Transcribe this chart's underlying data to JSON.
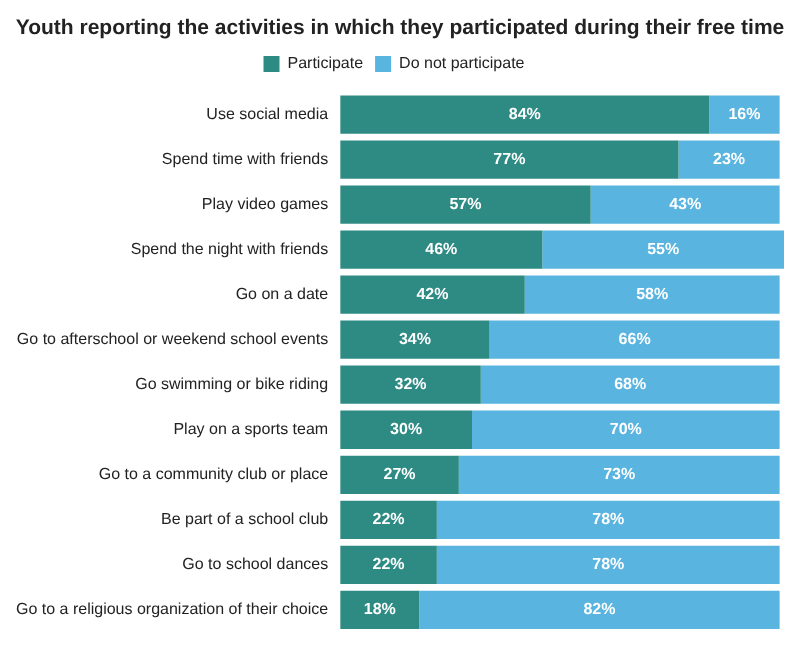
{
  "chart_data": {
    "type": "bar",
    "orientation": "horizontal",
    "stacked": true,
    "title": "Youth reporting the activities in which they participated during their free time",
    "categories": [
      "Use social media",
      "Spend time with friends",
      "Play video games",
      "Spend the night with friends",
      "Go on a date",
      "Go to afterschool or weekend school events",
      "Go swimming or bike riding",
      "Play on a sports team",
      "Go to a community club or place",
      "Be part of a school club",
      "Go to school dances",
      "Go to a religious organization of their choice"
    ],
    "series": [
      {
        "name": "Participate",
        "color": "#2e8b84",
        "values": [
          84,
          77,
          57,
          46,
          42,
          34,
          32,
          30,
          27,
          22,
          22,
          18
        ],
        "value_labels": [
          "84%",
          "77%",
          "57%",
          "46%",
          "42%",
          "34%",
          "32%",
          "30%",
          "27%",
          "22%",
          "22%",
          "18%"
        ]
      },
      {
        "name": "Do not participate",
        "color": "#5ab4e0",
        "values": [
          16,
          23,
          43,
          55,
          58,
          66,
          68,
          70,
          73,
          78,
          78,
          82
        ],
        "value_labels": [
          "16%",
          "23%",
          "43%",
          "55%",
          "58%",
          "66%",
          "68%",
          "70%",
          "73%",
          "78%",
          "78%",
          "82%"
        ]
      }
    ],
    "legend": "top",
    "grid": false,
    "tick_labels": "y"
  }
}
